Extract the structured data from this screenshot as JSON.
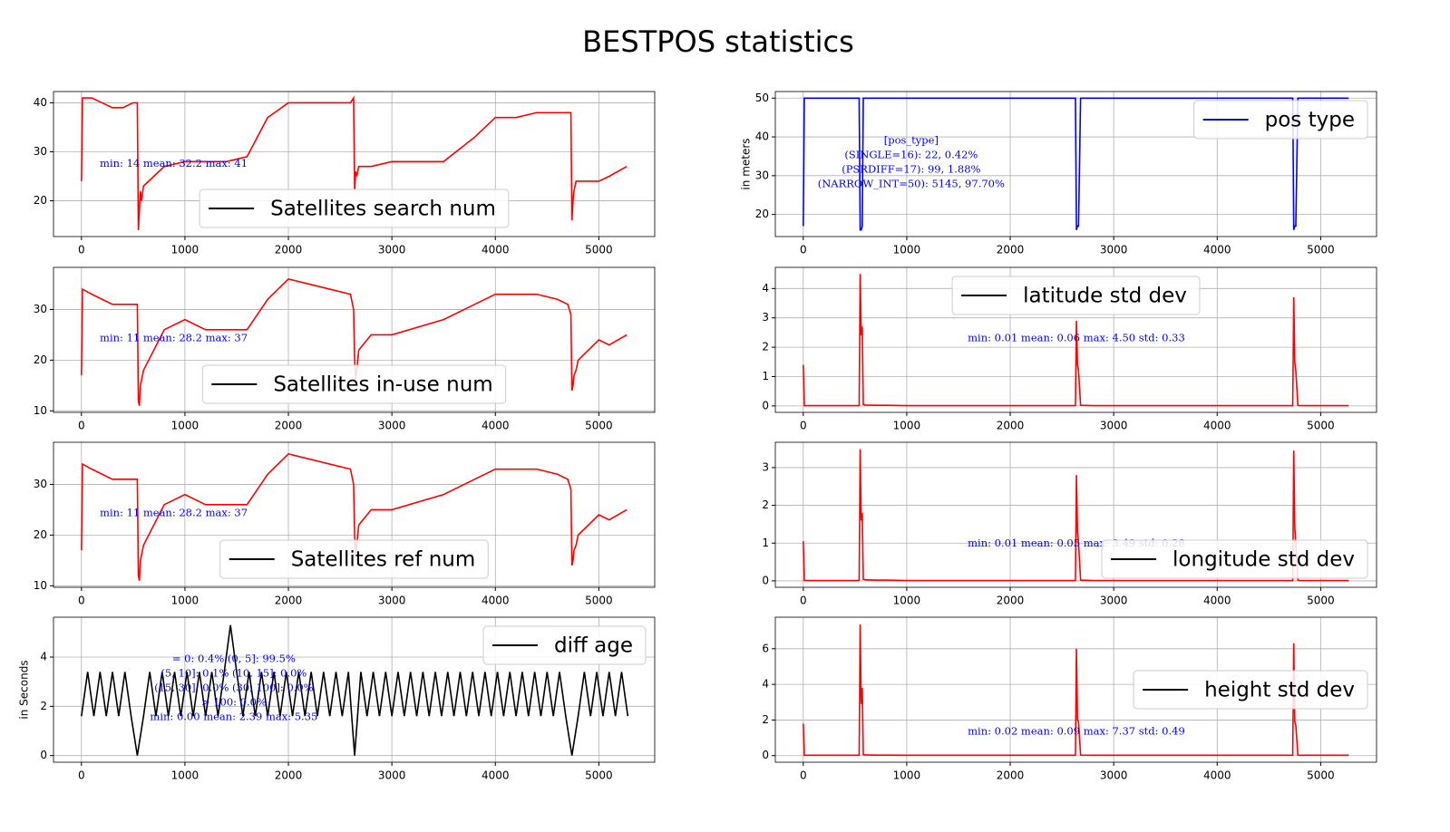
{
  "title": "BESTPOS statistics",
  "chart_data": [
    {
      "type": "line",
      "xlim": [
        -270,
        5540
      ],
      "xticks": [
        0,
        1000,
        2000,
        3000,
        4000,
        5000
      ],
      "ylim": [
        12.7,
        42.3
      ],
      "yticks": [
        20,
        30,
        40
      ],
      "grid": true,
      "legend_loc": "lower center",
      "legend_color": "#000000",
      "annotation": [
        "min: 14  mean: 32.2  max: 41"
      ],
      "annotation_color": "#0000ff",
      "x": [
        0,
        10,
        100,
        200,
        300,
        400,
        500,
        540,
        550,
        560,
        570,
        580,
        600,
        700,
        800,
        1000,
        1200,
        1400,
        1600,
        1700,
        1800,
        2000,
        2200,
        2400,
        2600,
        2630,
        2640,
        2650,
        2660,
        2680,
        2800,
        3000,
        3500,
        3800,
        4000,
        4200,
        4400,
        4600,
        4700,
        4730,
        4740,
        4750,
        4760,
        4780,
        4800,
        5000,
        5100,
        5270
      ],
      "series": [
        {
          "name": "Satellites search num",
          "color": "#ff0000",
          "values": [
            24,
            41,
            41,
            40,
            39,
            39,
            40,
            40,
            14,
            18,
            22,
            20,
            23,
            25,
            27,
            28,
            28,
            28,
            29,
            33,
            37,
            40,
            40,
            40,
            40,
            41,
            22,
            26,
            25,
            27,
            27,
            28,
            28,
            33,
            37,
            37,
            38,
            38,
            38,
            38,
            16,
            20,
            22,
            24,
            24,
            24,
            25,
            27
          ]
        }
      ]
    },
    {
      "type": "line",
      "xlim": [
        -270,
        5540
      ],
      "xticks": [
        0,
        1000,
        2000,
        3000,
        4000,
        5000
      ],
      "ylim": [
        9.7,
        38.3
      ],
      "yticks": [
        10,
        20,
        30
      ],
      "grid": true,
      "legend_loc": "lower center",
      "legend_color": "#000000",
      "annotation": [
        "min: 11  mean: 28.2  max: 37"
      ],
      "annotation_color": "#0000ff",
      "x": [
        0,
        10,
        100,
        200,
        300,
        400,
        500,
        540,
        550,
        560,
        570,
        580,
        600,
        700,
        800,
        1000,
        1200,
        1400,
        1600,
        1700,
        1800,
        2000,
        2200,
        2400,
        2600,
        2630,
        2640,
        2650,
        2660,
        2680,
        2800,
        3000,
        3500,
        3800,
        4000,
        4200,
        4400,
        4600,
        4700,
        4730,
        4740,
        4750,
        4760,
        4780,
        4800,
        5000,
        5100,
        5270
      ],
      "series": [
        {
          "name": "Satellites in-use num",
          "color": "#ff0000",
          "values": [
            17,
            34,
            33,
            32,
            31,
            31,
            31,
            31,
            12,
            11,
            15,
            16,
            18,
            22,
            26,
            28,
            26,
            26,
            26,
            29,
            32,
            36,
            35,
            34,
            33,
            30,
            20,
            16,
            18,
            22,
            25,
            25,
            28,
            31,
            33,
            33,
            33,
            32,
            31,
            29,
            14,
            15,
            17,
            18,
            20,
            24,
            23,
            25
          ]
        }
      ]
    },
    {
      "type": "line",
      "xlim": [
        -270,
        5540
      ],
      "xticks": [
        0,
        1000,
        2000,
        3000,
        4000,
        5000
      ],
      "ylim": [
        9.7,
        38.3
      ],
      "yticks": [
        10,
        20,
        30
      ],
      "grid": true,
      "legend_loc": "lower center",
      "legend_color": "#000000",
      "annotation": [
        "min: 11  mean: 28.2  max: 37"
      ],
      "annotation_color": "#0000ff",
      "x": [
        0,
        10,
        100,
        200,
        300,
        400,
        500,
        540,
        550,
        560,
        570,
        580,
        600,
        700,
        800,
        1000,
        1200,
        1400,
        1600,
        1700,
        1800,
        2000,
        2200,
        2400,
        2600,
        2630,
        2640,
        2650,
        2660,
        2680,
        2800,
        3000,
        3500,
        3800,
        4000,
        4200,
        4400,
        4600,
        4700,
        4730,
        4740,
        4750,
        4760,
        4780,
        4800,
        5000,
        5100,
        5270
      ],
      "series": [
        {
          "name": "Satellites ref num",
          "color": "#ff0000",
          "values": [
            17,
            34,
            33,
            32,
            31,
            31,
            31,
            31,
            12,
            11,
            15,
            16,
            18,
            22,
            26,
            28,
            26,
            26,
            26,
            29,
            32,
            36,
            35,
            34,
            33,
            30,
            20,
            16,
            18,
            22,
            25,
            25,
            28,
            31,
            33,
            33,
            33,
            32,
            31,
            29,
            14,
            15,
            17,
            18,
            20,
            24,
            23,
            25
          ]
        }
      ]
    },
    {
      "type": "line",
      "ylabel": "in Seconds",
      "xlim": [
        -270,
        5540
      ],
      "xticks": [
        0,
        1000,
        2000,
        3000,
        4000,
        5000
      ],
      "ylim": [
        -0.27,
        5.62
      ],
      "yticks": [
        0,
        2,
        4
      ],
      "grid": true,
      "legend_loc": "upper right",
      "legend_color": "#000000",
      "annotation": [
        "= 0: 0.4%    (0, 5]: 99.5%",
        "(5, 10]: 0.1%    (10, 15]: 0.0%",
        "(15, 30]: 0.0%    (30, 100]: 0.0%",
        "> 100: 0.0%",
        "min: 0.00  mean: 2.39  max: 5.35"
      ],
      "annotation_color": "#0000ff",
      "x": [
        0,
        60,
        120,
        180,
        240,
        300,
        360,
        420,
        480,
        540,
        600,
        660,
        720,
        780,
        840,
        900,
        960,
        1020,
        1080,
        1140,
        1200,
        1260,
        1320,
        1380,
        1440,
        1500,
        1560,
        1620,
        1680,
        1740,
        1800,
        1860,
        1920,
        1980,
        2040,
        2100,
        2160,
        2220,
        2280,
        2340,
        2400,
        2460,
        2520,
        2580,
        2640,
        2700,
        2760,
        2820,
        2880,
        2940,
        3000,
        3060,
        3120,
        3180,
        3240,
        3300,
        3360,
        3420,
        3480,
        3540,
        3600,
        3660,
        3720,
        3780,
        3840,
        3900,
        3960,
        4020,
        4080,
        4140,
        4200,
        4260,
        4320,
        4380,
        4440,
        4500,
        4560,
        4620,
        4680,
        4740,
        4800,
        4860,
        4920,
        4980,
        5040,
        5100,
        5160,
        5220,
        5280
      ],
      "series": [
        {
          "name": "diff age",
          "color": "#000000",
          "values": [
            1.6,
            3.4,
            1.6,
            3.4,
            1.6,
            3.4,
            1.6,
            3.4,
            1.6,
            0,
            1.6,
            3.4,
            1.6,
            3.4,
            1.6,
            3.4,
            1.6,
            3.4,
            1.6,
            3.4,
            1.6,
            3.4,
            1.6,
            3.4,
            5.3,
            3.4,
            1.6,
            3.4,
            1.6,
            3.4,
            1.6,
            3.4,
            1.6,
            3.4,
            1.6,
            3.4,
            1.6,
            3.4,
            1.6,
            3.4,
            1.6,
            3.4,
            1.6,
            3.4,
            0,
            3.4,
            1.6,
            3.4,
            1.6,
            3.4,
            1.6,
            3.4,
            1.6,
            3.4,
            1.6,
            3.4,
            1.6,
            3.4,
            1.6,
            3.4,
            1.6,
            3.4,
            1.6,
            3.4,
            1.6,
            3.4,
            1.6,
            3.4,
            1.6,
            3.4,
            1.6,
            3.4,
            1.6,
            3.4,
            1.6,
            3.4,
            1.6,
            3.4,
            1.6,
            0,
            1.6,
            3.4,
            1.6,
            3.4,
            1.6,
            3.4,
            1.6,
            3.4,
            1.6
          ]
        }
      ]
    },
    {
      "type": "line",
      "ylabel": "in meters",
      "xlim": [
        -270,
        5540
      ],
      "xticks": [
        0,
        1000,
        2000,
        3000,
        4000,
        5000
      ],
      "ylim": [
        14.3,
        51.7
      ],
      "yticks": [
        20,
        30,
        40,
        50
      ],
      "grid": true,
      "legend_loc": "upper right",
      "legend_color": "#0000ff",
      "annotation": [
        "[pos_type]",
        "(SINGLE=16): 22,  0.42%",
        "(PSRDIFF=17): 99,  1.88%",
        "(NARROW_INT=50): 5145,  97.70%"
      ],
      "annotation_color": "#0000ff",
      "x": [
        0,
        10,
        100,
        200,
        300,
        400,
        500,
        540,
        550,
        560,
        570,
        580,
        600,
        700,
        800,
        1000,
        1200,
        1400,
        1600,
        1700,
        1800,
        2000,
        2200,
        2400,
        2600,
        2630,
        2640,
        2650,
        2660,
        2680,
        2800,
        3000,
        3500,
        3800,
        4000,
        4200,
        4400,
        4600,
        4700,
        4730,
        4740,
        4750,
        4760,
        4780,
        4800,
        5000,
        5100,
        5270
      ],
      "series": [
        {
          "name": "pos type",
          "color": "#0000ff",
          "values": [
            17,
            50,
            50,
            50,
            50,
            50,
            50,
            50,
            16,
            16,
            17,
            50,
            50,
            50,
            50,
            50,
            50,
            50,
            50,
            50,
            50,
            50,
            50,
            50,
            50,
            50,
            16,
            17,
            17,
            50,
            50,
            50,
            50,
            50,
            50,
            50,
            50,
            50,
            50,
            50,
            16,
            17,
            17,
            50,
            50,
            50,
            50,
            50
          ]
        }
      ]
    },
    {
      "type": "line",
      "xlim": [
        -270,
        5540
      ],
      "xticks": [
        0,
        1000,
        2000,
        3000,
        4000,
        5000
      ],
      "ylim": [
        -0.22,
        4.72
      ],
      "yticks": [
        0,
        1,
        2,
        3,
        4
      ],
      "grid": true,
      "legend_loc": "upper center",
      "legend_color": "#000000",
      "annotation": [
        "min: 0.01  mean: 0.06  max: 4.50  std: 0.33"
      ],
      "annotation_color": "#0000ff",
      "x": [
        0,
        10,
        100,
        200,
        300,
        400,
        500,
        540,
        550,
        560,
        570,
        580,
        600,
        700,
        800,
        1000,
        1200,
        1400,
        1600,
        1700,
        1800,
        2000,
        2200,
        2400,
        2600,
        2630,
        2640,
        2650,
        2660,
        2680,
        2800,
        3000,
        3500,
        3800,
        4000,
        4200,
        4400,
        4600,
        4700,
        4730,
        4740,
        4750,
        4760,
        4780,
        4800,
        5000,
        5100,
        5270
      ],
      "series": [
        {
          "name": "latitude std dev",
          "color": "#ff0000",
          "values": [
            1.4,
            0.01,
            0.01,
            0.01,
            0.01,
            0.01,
            0.01,
            0.01,
            4.5,
            2.4,
            2.7,
            0.05,
            0.03,
            0.02,
            0.02,
            0.01,
            0.01,
            0.01,
            0.01,
            0.01,
            0.01,
            0.01,
            0.01,
            0.01,
            0.01,
            0.01,
            2.9,
            1.4,
            1.2,
            0.02,
            0.01,
            0.01,
            0.01,
            0.01,
            0.01,
            0.01,
            0.01,
            0.01,
            0.01,
            0.01,
            3.7,
            1.5,
            1.2,
            0.02,
            0.01,
            0.01,
            0.01,
            0.01
          ]
        }
      ]
    },
    {
      "type": "line",
      "xlim": [
        -270,
        5540
      ],
      "xticks": [
        0,
        1000,
        2000,
        3000,
        4000,
        5000
      ],
      "ylim": [
        -0.17,
        3.67
      ],
      "yticks": [
        0,
        1,
        2,
        3
      ],
      "grid": true,
      "legend_loc": "lower right",
      "legend_color": "#000000",
      "annotation": [
        "min: 0.01  mean: 0.05  max: 3.49  std: 0.28"
      ],
      "annotation_color": "#0000ff",
      "x": [
        0,
        10,
        100,
        200,
        300,
        400,
        500,
        540,
        550,
        560,
        570,
        580,
        600,
        700,
        800,
        1000,
        1200,
        1400,
        1600,
        1700,
        1800,
        2000,
        2200,
        2400,
        2600,
        2630,
        2640,
        2650,
        2660,
        2680,
        2800,
        3000,
        3500,
        3800,
        4000,
        4200,
        4400,
        4600,
        4700,
        4730,
        4740,
        4750,
        4760,
        4780,
        4800,
        5000,
        5100,
        5270
      ],
      "series": [
        {
          "name": "longitude std dev",
          "color": "#ff0000",
          "values": [
            1.05,
            0.01,
            0.01,
            0.01,
            0.01,
            0.01,
            0.01,
            0.01,
            3.49,
            1.6,
            1.8,
            0.04,
            0.03,
            0.02,
            0.02,
            0.01,
            0.01,
            0.01,
            0.01,
            0.01,
            0.01,
            0.01,
            0.01,
            0.01,
            0.01,
            0.01,
            2.8,
            1.3,
            1.0,
            0.02,
            0.01,
            0.01,
            0.01,
            0.01,
            0.01,
            0.01,
            0.01,
            0.01,
            0.01,
            0.01,
            3.45,
            1.4,
            1.0,
            0.02,
            0.01,
            0.01,
            0.01,
            0.01
          ]
        }
      ]
    },
    {
      "type": "line",
      "xlim": [
        -270,
        5540
      ],
      "xticks": [
        0,
        1000,
        2000,
        3000,
        4000,
        5000
      ],
      "ylim": [
        -0.37,
        7.77
      ],
      "yticks": [
        0,
        2,
        4,
        6
      ],
      "grid": true,
      "legend_loc": "center right",
      "legend_color": "#000000",
      "annotation": [
        "min: 0.02  mean: 0.09  max: 7.37  std: 0.49"
      ],
      "annotation_color": "#0000ff",
      "x": [
        0,
        10,
        100,
        200,
        300,
        400,
        500,
        540,
        550,
        560,
        570,
        580,
        600,
        700,
        800,
        1000,
        1200,
        1400,
        1600,
        1700,
        1800,
        2000,
        2200,
        2400,
        2600,
        2630,
        2640,
        2650,
        2660,
        2680,
        2800,
        3000,
        3500,
        3800,
        4000,
        4200,
        4400,
        4600,
        4700,
        4730,
        4740,
        4750,
        4760,
        4780,
        4800,
        5000,
        5100,
        5270
      ],
      "series": [
        {
          "name": "height std dev",
          "color": "#ff0000",
          "values": [
            1.8,
            0.02,
            0.02,
            0.02,
            0.02,
            0.02,
            0.02,
            0.02,
            7.37,
            2.9,
            3.8,
            0.06,
            0.04,
            0.03,
            0.03,
            0.02,
            0.02,
            0.02,
            0.02,
            0.02,
            0.02,
            0.02,
            0.02,
            0.02,
            0.02,
            0.02,
            6.0,
            2.0,
            1.9,
            0.03,
            0.02,
            0.02,
            0.02,
            0.02,
            0.02,
            0.02,
            0.02,
            0.02,
            0.02,
            0.02,
            6.3,
            1.9,
            1.7,
            0.03,
            0.02,
            0.02,
            0.02,
            0.02
          ]
        }
      ]
    }
  ]
}
